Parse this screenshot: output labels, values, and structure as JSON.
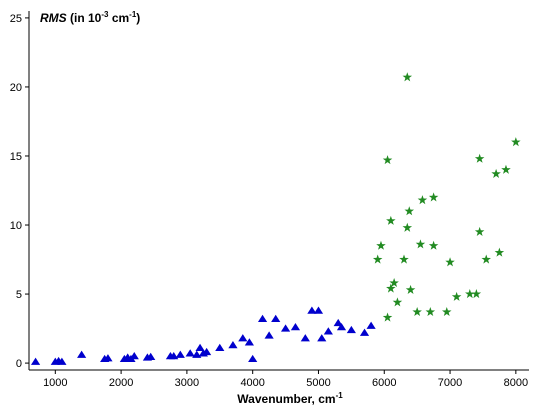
{
  "chart_data": {
    "type": "scatter",
    "title": "",
    "ylabel": {
      "italic": "RMS",
      "text": " (in 10",
      "sup1": "-3",
      "mid": " cm",
      "sup2": "-1",
      "end": ")"
    },
    "xlabel": {
      "text": "Wavenumber, cm",
      "sup": "-1"
    },
    "xlim": [
      600,
      8200
    ],
    "ylim": [
      -0.5,
      25.5
    ],
    "xticks": [
      1000,
      2000,
      3000,
      4000,
      5000,
      6000,
      7000,
      8000
    ],
    "yticks": [
      0,
      5,
      10,
      15,
      20,
      25
    ],
    "grid": false,
    "legend": "none",
    "series": [
      {
        "marker": "triangle",
        "color": "#0000CD",
        "points": [
          [
            700,
            0.1
          ],
          [
            1000,
            0.1
          ],
          [
            1050,
            0.15
          ],
          [
            1100,
            0.1
          ],
          [
            1400,
            0.6
          ],
          [
            1750,
            0.3
          ],
          [
            1800,
            0.35
          ],
          [
            2050,
            0.3
          ],
          [
            2100,
            0.4
          ],
          [
            2150,
            0.3
          ],
          [
            2200,
            0.5
          ],
          [
            2400,
            0.4
          ],
          [
            2450,
            0.45
          ],
          [
            2750,
            0.5
          ],
          [
            2800,
            0.5
          ],
          [
            2900,
            0.6
          ],
          [
            3050,
            0.7
          ],
          [
            3150,
            0.6
          ],
          [
            3200,
            1.1
          ],
          [
            3250,
            0.7
          ],
          [
            3300,
            0.8
          ],
          [
            3500,
            1.1
          ],
          [
            3700,
            1.3
          ],
          [
            3850,
            1.8
          ],
          [
            3950,
            1.5
          ],
          [
            4000,
            0.3
          ],
          [
            4150,
            3.2
          ],
          [
            4250,
            2.0
          ],
          [
            4350,
            3.2
          ],
          [
            4500,
            2.5
          ],
          [
            4650,
            2.6
          ],
          [
            4800,
            1.8
          ],
          [
            4900,
            3.8
          ],
          [
            5000,
            3.8
          ],
          [
            5050,
            1.8
          ],
          [
            5150,
            2.3
          ],
          [
            5300,
            2.9
          ],
          [
            5350,
            2.6
          ],
          [
            5500,
            2.4
          ],
          [
            5700,
            2.2
          ],
          [
            5800,
            2.7
          ]
        ]
      },
      {
        "marker": "star",
        "color": "#228B22",
        "points": [
          [
            5900,
            7.5
          ],
          [
            5950,
            8.5
          ],
          [
            6050,
            14.7
          ],
          [
            6050,
            3.3
          ],
          [
            6100,
            10.3
          ],
          [
            6100,
            5.4
          ],
          [
            6150,
            5.8
          ],
          [
            6200,
            4.4
          ],
          [
            6300,
            7.5
          ],
          [
            6350,
            20.7
          ],
          [
            6350,
            9.8
          ],
          [
            6380,
            11.0
          ],
          [
            6400,
            5.3
          ],
          [
            6500,
            3.7
          ],
          [
            6550,
            8.6
          ],
          [
            6580,
            11.8
          ],
          [
            6700,
            3.7
          ],
          [
            6750,
            12.0
          ],
          [
            6750,
            8.5
          ],
          [
            6950,
            3.7
          ],
          [
            7000,
            7.3
          ],
          [
            7100,
            4.8
          ],
          [
            7300,
            5.0
          ],
          [
            7400,
            5.0
          ],
          [
            7450,
            14.8
          ],
          [
            7450,
            9.5
          ],
          [
            7550,
            7.5
          ],
          [
            7700,
            13.7
          ],
          [
            7750,
            8.0
          ],
          [
            7850,
            14.0
          ],
          [
            8000,
            16.0
          ]
        ]
      }
    ]
  }
}
